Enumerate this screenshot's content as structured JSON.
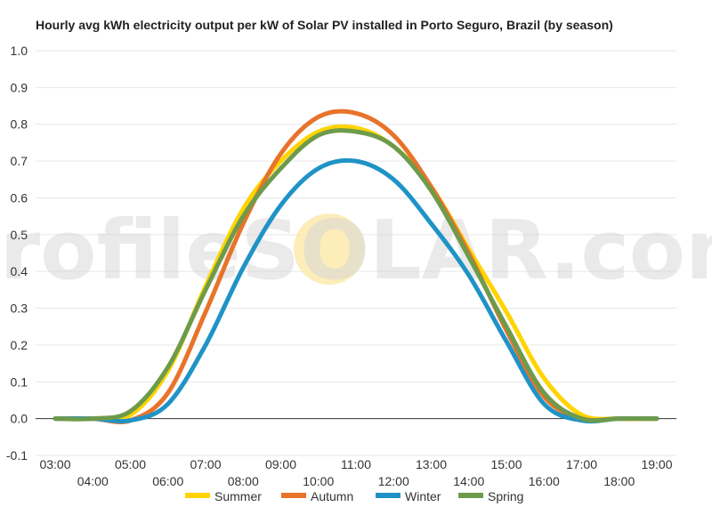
{
  "chart_data": {
    "type": "line",
    "title": "Hourly avg kWh electricity output per kW of Solar PV installed in Porto Seguro, Brazil (by season)",
    "xlabel": "",
    "ylabel": "",
    "x": [
      "03:00",
      "04:00",
      "05:00",
      "06:00",
      "07:00",
      "08:00",
      "09:00",
      "10:00",
      "11:00",
      "12:00",
      "13:00",
      "14:00",
      "15:00",
      "16:00",
      "17:00",
      "18:00",
      "19:00"
    ],
    "ylim": [
      -0.1,
      1.0
    ],
    "yticks": [
      "1.0",
      "0.9",
      "0.8",
      "0.7",
      "0.6",
      "0.5",
      "0.4",
      "0.3",
      "0.2",
      "0.1",
      "0.0",
      "-0.1"
    ],
    "grid": true,
    "legend_position": "bottom",
    "series": [
      {
        "name": "Summer",
        "color": "#FFD400",
        "values": [
          0,
          0,
          0.01,
          0.13,
          0.36,
          0.57,
          0.7,
          0.78,
          0.79,
          0.74,
          0.63,
          0.46,
          0.29,
          0.11,
          0.01,
          0,
          0
        ]
      },
      {
        "name": "Autumn",
        "color": "#E8732A",
        "values": [
          0,
          0,
          -0.005,
          0.07,
          0.29,
          0.53,
          0.72,
          0.82,
          0.83,
          0.77,
          0.63,
          0.45,
          0.24,
          0.06,
          0,
          0,
          0
        ]
      },
      {
        "name": "Winter",
        "color": "#1F93C6",
        "values": [
          0,
          0,
          -0.005,
          0.04,
          0.2,
          0.41,
          0.58,
          0.68,
          0.7,
          0.65,
          0.53,
          0.39,
          0.21,
          0.04,
          -0.005,
          0,
          0
        ]
      },
      {
        "name": "Spring",
        "color": "#6D9B4B",
        "values": [
          0,
          0,
          0.02,
          0.14,
          0.35,
          0.55,
          0.68,
          0.77,
          0.78,
          0.74,
          0.62,
          0.44,
          0.25,
          0.07,
          0,
          0,
          0
        ]
      }
    ]
  },
  "watermark": "profileSOLAR.com",
  "colors": {
    "grid": "#e6e6e6",
    "zero_line": "#333333",
    "sun": "#fbe8a8"
  }
}
